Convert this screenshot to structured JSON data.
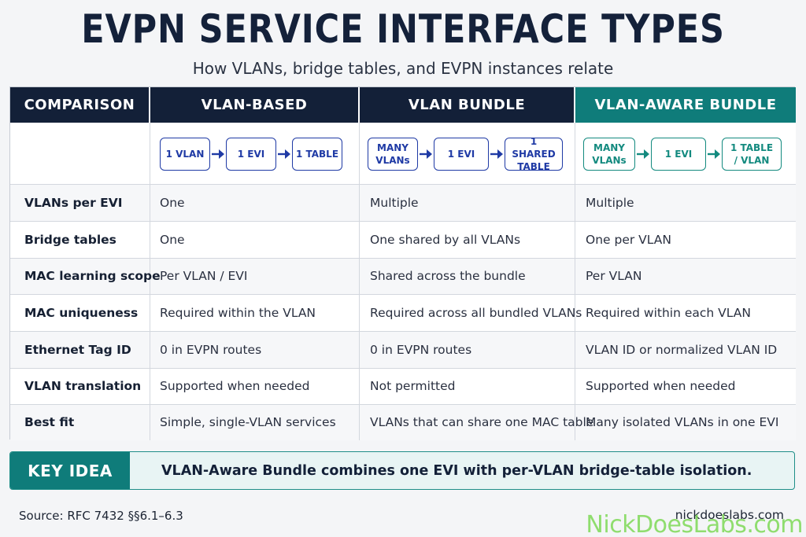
{
  "title": "EVPN SERVICE INTERFACE TYPES",
  "subtitle": "How VLANs, bridge tables, and EVPN instances relate",
  "headers": [
    "COMPARISON",
    "VLAN-BASED",
    "VLAN BUNDLE",
    "VLAN-AWARE BUNDLE"
  ],
  "flows": {
    "vlan_based": [
      "1 VLAN",
      "1 EVI",
      "1 TABLE"
    ],
    "vlan_bundle": [
      "MANY VLANs",
      "1 EVI",
      "1 SHARED TABLE"
    ],
    "vlan_aware": [
      "MANY VLANs",
      "1 EVI",
      "1 TABLE / VLAN"
    ]
  },
  "rows": [
    {
      "label": "VLANs per EVI",
      "based": "One",
      "bundle": "Multiple",
      "aware": "Multiple"
    },
    {
      "label": "Bridge tables",
      "based": "One",
      "bundle": "One shared by all VLANs",
      "aware": "One per VLAN"
    },
    {
      "label": "MAC learning scope",
      "based": "Per VLAN / EVI",
      "bundle": "Shared across the bundle",
      "aware": "Per VLAN"
    },
    {
      "label": "MAC uniqueness",
      "based": "Required within the VLAN",
      "bundle": "Required across all bundled VLANs",
      "aware": "Required within each VLAN"
    },
    {
      "label": "Ethernet Tag ID",
      "based": "0 in EVPN routes",
      "bundle": "0 in EVPN routes",
      "aware": "VLAN ID or normalized VLAN ID"
    },
    {
      "label": "VLAN translation",
      "based": "Supported when needed",
      "bundle": "Not permitted",
      "aware": "Supported when needed"
    },
    {
      "label": "Best fit",
      "based": "Simple, single-VLAN services",
      "bundle": "VLANs that can share one MAC table",
      "aware": "Many isolated VLANs in one EVI"
    }
  ],
  "key_idea": {
    "label": "KEY IDEA",
    "text": "VLAN-Aware Bundle combines one EVI with per-VLAN bridge-table isolation."
  },
  "source": "Source: RFC 7432  §§6.1–6.3",
  "site": "nickdoeslabs.com",
  "watermark": "NickDoesLabs.com",
  "colors": {
    "navy": "#132038",
    "teal": "#0f7c7a",
    "flow_blue": "#1f3aa5",
    "flow_teal": "#138a7f"
  }
}
